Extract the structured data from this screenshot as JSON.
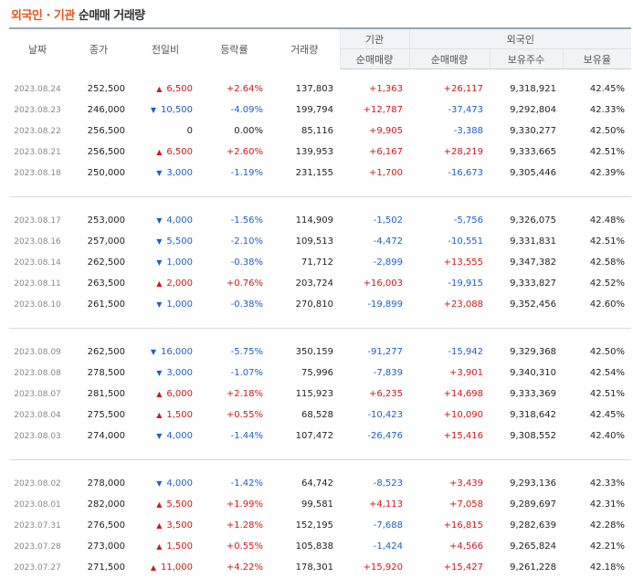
{
  "title": {
    "part1": "외국인",
    "separator": "·",
    "part2": "기관",
    "part3": "순매매 거래량"
  },
  "headers": {
    "date": "날짜",
    "close": "종가",
    "change": "전일비",
    "rate": "등락률",
    "volume": "거래량",
    "inst_group": "기관",
    "inst_net": "순매매량",
    "foreign_group": "외국인",
    "foreign_net": "순매매량",
    "foreign_hold": "보유주수",
    "foreign_ratio": "보유율"
  },
  "colors": {
    "up": "#d21717",
    "down": "#1e5ec6",
    "accent": "#e8561f"
  },
  "groups": [
    [
      {
        "date": "2023.08.24",
        "close": "252,500",
        "dir": "up",
        "change": "6,500",
        "rate": "+2.64%",
        "volume": "137,803",
        "inst": "+1,363",
        "foreign": "+26,117",
        "hold": "9,318,921",
        "ratio": "42.45%"
      },
      {
        "date": "2023.08.23",
        "close": "246,000",
        "dir": "down",
        "change": "10,500",
        "rate": "-4.09%",
        "volume": "199,794",
        "inst": "+12,787",
        "foreign": "-37,473",
        "hold": "9,292,804",
        "ratio": "42.33%"
      },
      {
        "date": "2023.08.22",
        "close": "256,500",
        "dir": "none",
        "change": "0",
        "rate": "0.00%",
        "volume": "85,116",
        "inst": "+9,905",
        "foreign": "-3,388",
        "hold": "9,330,277",
        "ratio": "42.50%"
      },
      {
        "date": "2023.08.21",
        "close": "256,500",
        "dir": "up",
        "change": "6,500",
        "rate": "+2.60%",
        "volume": "139,953",
        "inst": "+6,167",
        "foreign": "+28,219",
        "hold": "9,333,665",
        "ratio": "42.51%"
      },
      {
        "date": "2023.08.18",
        "close": "250,000",
        "dir": "down",
        "change": "3,000",
        "rate": "-1.19%",
        "volume": "231,155",
        "inst": "+1,700",
        "foreign": "-16,673",
        "hold": "9,305,446",
        "ratio": "42.39%"
      }
    ],
    [
      {
        "date": "2023.08.17",
        "close": "253,000",
        "dir": "down",
        "change": "4,000",
        "rate": "-1.56%",
        "volume": "114,909",
        "inst": "-1,502",
        "foreign": "-5,756",
        "hold": "9,326,075",
        "ratio": "42.48%"
      },
      {
        "date": "2023.08.16",
        "close": "257,000",
        "dir": "down",
        "change": "5,500",
        "rate": "-2.10%",
        "volume": "109,513",
        "inst": "-4,472",
        "foreign": "-10,551",
        "hold": "9,331,831",
        "ratio": "42.51%"
      },
      {
        "date": "2023.08.14",
        "close": "262,500",
        "dir": "down",
        "change": "1,000",
        "rate": "-0.38%",
        "volume": "71,712",
        "inst": "-2,899",
        "foreign": "+13,555",
        "hold": "9,347,382",
        "ratio": "42.58%"
      },
      {
        "date": "2023.08.11",
        "close": "263,500",
        "dir": "up",
        "change": "2,000",
        "rate": "+0.76%",
        "volume": "203,724",
        "inst": "+16,003",
        "foreign": "-19,915",
        "hold": "9,333,827",
        "ratio": "42.52%"
      },
      {
        "date": "2023.08.10",
        "close": "261,500",
        "dir": "down",
        "change": "1,000",
        "rate": "-0.38%",
        "volume": "270,810",
        "inst": "-19,899",
        "foreign": "+23,088",
        "hold": "9,352,456",
        "ratio": "42.60%"
      }
    ],
    [
      {
        "date": "2023.08.09",
        "close": "262,500",
        "dir": "down",
        "change": "16,000",
        "rate": "-5.75%",
        "volume": "350,159",
        "inst": "-91,277",
        "foreign": "-15,942",
        "hold": "9,329,368",
        "ratio": "42.50%"
      },
      {
        "date": "2023.08.08",
        "close": "278,500",
        "dir": "down",
        "change": "3,000",
        "rate": "-1.07%",
        "volume": "75,996",
        "inst": "-7,839",
        "foreign": "+3,901",
        "hold": "9,340,310",
        "ratio": "42.54%"
      },
      {
        "date": "2023.08.07",
        "close": "281,500",
        "dir": "up",
        "change": "6,000",
        "rate": "+2.18%",
        "volume": "115,923",
        "inst": "+6,235",
        "foreign": "+14,698",
        "hold": "9,333,369",
        "ratio": "42.51%"
      },
      {
        "date": "2023.08.04",
        "close": "275,500",
        "dir": "up",
        "change": "1,500",
        "rate": "+0.55%",
        "volume": "68,528",
        "inst": "-10,423",
        "foreign": "+10,090",
        "hold": "9,318,642",
        "ratio": "42.45%"
      },
      {
        "date": "2023.08.03",
        "close": "274,000",
        "dir": "down",
        "change": "4,000",
        "rate": "-1.44%",
        "volume": "107,472",
        "inst": "-26,476",
        "foreign": "+15,416",
        "hold": "9,308,552",
        "ratio": "42.40%"
      }
    ],
    [
      {
        "date": "2023.08.02",
        "close": "278,000",
        "dir": "down",
        "change": "4,000",
        "rate": "-1.42%",
        "volume": "64,742",
        "inst": "-8,523",
        "foreign": "+3,439",
        "hold": "9,293,136",
        "ratio": "42.33%"
      },
      {
        "date": "2023.08.01",
        "close": "282,000",
        "dir": "up",
        "change": "5,500",
        "rate": "+1.99%",
        "volume": "99,581",
        "inst": "+4,113",
        "foreign": "+7,058",
        "hold": "9,289,697",
        "ratio": "42.31%"
      },
      {
        "date": "2023.07.31",
        "close": "276,500",
        "dir": "up",
        "change": "3,500",
        "rate": "+1.28%",
        "volume": "152,195",
        "inst": "-7,688",
        "foreign": "+16,815",
        "hold": "9,282,639",
        "ratio": "42.28%"
      },
      {
        "date": "2023.07.28",
        "close": "273,000",
        "dir": "up",
        "change": "1,500",
        "rate": "+0.55%",
        "volume": "105,838",
        "inst": "-1,424",
        "foreign": "+4,566",
        "hold": "9,265,824",
        "ratio": "42.21%"
      },
      {
        "date": "2023.07.27",
        "close": "271,500",
        "dir": "up",
        "change": "11,000",
        "rate": "+4.22%",
        "volume": "178,301",
        "inst": "+15,920",
        "foreign": "+15,427",
        "hold": "9,261,228",
        "ratio": "42.18%"
      }
    ]
  ]
}
